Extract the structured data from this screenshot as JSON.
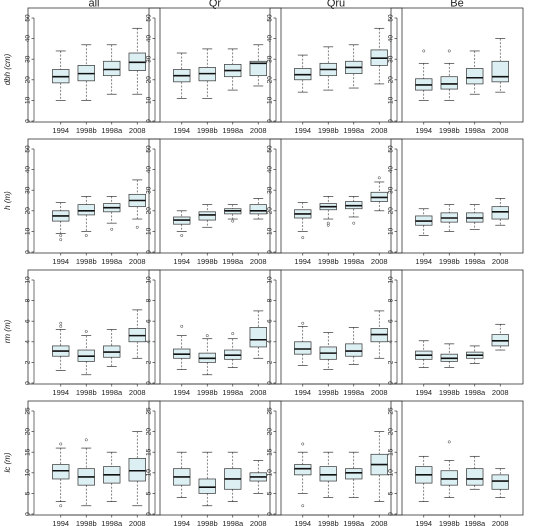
{
  "chart_data": {
    "type": "boxplot",
    "column_titles": [
      "all",
      "Qr",
      "Qru",
      "Be"
    ],
    "categories": [
      "1994",
      "1998b",
      "1998a",
      "2008"
    ],
    "box_color": "#dceff2",
    "rows": [
      {
        "ylabel": "dbh (cm)",
        "ylim": [
          0,
          50
        ],
        "yticks": [
          "0",
          "10",
          "20",
          "30",
          "40",
          "50"
        ],
        "panels": [
          [
            {
              "min": 10,
              "q1": 18.5,
              "median": 21.5,
              "q3": 25,
              "max": 34,
              "outliers": []
            },
            {
              "min": 10,
              "q1": 19.5,
              "median": 23,
              "q3": 27,
              "max": 37,
              "outliers": []
            },
            {
              "min": 13,
              "q1": 22,
              "median": 25,
              "q3": 29,
              "max": 37,
              "outliers": []
            },
            {
              "min": 13,
              "q1": 24.5,
              "median": 28.5,
              "q3": 33,
              "max": 45,
              "outliers": []
            }
          ],
          [
            {
              "min": 11,
              "q1": 19,
              "median": 22,
              "q3": 25,
              "max": 33,
              "outliers": []
            },
            {
              "min": 11,
              "q1": 19.5,
              "median": 23,
              "q3": 26,
              "max": 35,
              "outliers": []
            },
            {
              "min": 15,
              "q1": 21.5,
              "median": 24.5,
              "q3": 27.5,
              "max": 35,
              "outliers": []
            },
            {
              "min": 17,
              "q1": 22,
              "median": 28,
              "q3": 29,
              "max": 37,
              "outliers": []
            }
          ],
          [
            {
              "min": 14,
              "q1": 20,
              "median": 22.5,
              "q3": 25.5,
              "max": 32,
              "outliers": []
            },
            {
              "min": 15,
              "q1": 22,
              "median": 25,
              "q3": 28,
              "max": 36,
              "outliers": []
            },
            {
              "min": 16,
              "q1": 23,
              "median": 26,
              "q3": 29,
              "max": 37,
              "outliers": []
            },
            {
              "min": 18,
              "q1": 27,
              "median": 30.5,
              "q3": 34.5,
              "max": 45,
              "outliers": []
            }
          ],
          [
            {
              "min": 10,
              "q1": 15,
              "median": 17.5,
              "q3": 20.5,
              "max": 28,
              "outliers": [
                34
              ]
            },
            {
              "min": 10,
              "q1": 15.5,
              "median": 18,
              "q3": 21.5,
              "max": 28,
              "outliers": [
                34
              ]
            },
            {
              "min": 13,
              "q1": 18,
              "median": 21,
              "q3": 25.5,
              "max": 34,
              "outliers": []
            },
            {
              "min": 14,
              "q1": 19,
              "median": 21.5,
              "q3": 29,
              "max": 40,
              "outliers": []
            }
          ]
        ]
      },
      {
        "ylabel": "h (m)",
        "ylim": [
          0,
          50
        ],
        "yticks": [
          "0",
          "10",
          "20",
          "30",
          "40",
          "50"
        ],
        "panels": [
          [
            {
              "min": 9,
              "q1": 15,
              "median": 17.5,
              "q3": 20,
              "max": 24,
              "outliers": [
                6,
                8
              ]
            },
            {
              "min": 10,
              "q1": 18,
              "median": 20,
              "q3": 23,
              "max": 27,
              "outliers": [
                8
              ]
            },
            {
              "min": 14,
              "q1": 19.5,
              "median": 21.5,
              "q3": 23.5,
              "max": 27,
              "outliers": [
                11
              ]
            },
            {
              "min": 16,
              "q1": 22,
              "median": 25,
              "q3": 28,
              "max": 35,
              "outliers": [
                12
              ]
            }
          ],
          [
            {
              "min": 10,
              "q1": 13.5,
              "median": 15.5,
              "q3": 17,
              "max": 20,
              "outliers": [
                8
              ]
            },
            {
              "min": 12,
              "q1": 15.5,
              "median": 18,
              "q3": 19.5,
              "max": 23,
              "outliers": []
            },
            {
              "min": 16,
              "q1": 18.5,
              "median": 20,
              "q3": 21,
              "max": 23,
              "outliers": [
                15
              ]
            },
            {
              "min": 16,
              "q1": 18.5,
              "median": 20,
              "q3": 23,
              "max": 26,
              "outliers": []
            }
          ],
          [
            {
              "min": 10,
              "q1": 16.5,
              "median": 18.5,
              "q3": 20.5,
              "max": 24,
              "outliers": [
                7
              ]
            },
            {
              "min": 16,
              "q1": 20.5,
              "median": 22,
              "q3": 23.5,
              "max": 27,
              "outliers": [
                13,
                14
              ]
            },
            {
              "min": 17,
              "q1": 21,
              "median": 22.5,
              "q3": 24.5,
              "max": 27,
              "outliers": [
                14
              ]
            },
            {
              "min": 20,
              "q1": 24.5,
              "median": 26.5,
              "q3": 29,
              "max": 34,
              "outliers": [
                36
              ]
            }
          ],
          [
            {
              "min": 8,
              "q1": 13,
              "median": 15,
              "q3": 17.5,
              "max": 21,
              "outliers": []
            },
            {
              "min": 10,
              "q1": 14.5,
              "median": 16.5,
              "q3": 19,
              "max": 23,
              "outliers": []
            },
            {
              "min": 11,
              "q1": 14.5,
              "median": 16.5,
              "q3": 19,
              "max": 23,
              "outliers": []
            },
            {
              "min": 13,
              "q1": 16,
              "median": 19.5,
              "q3": 22,
              "max": 26,
              "outliers": []
            }
          ]
        ]
      },
      {
        "ylabel": "rm (m)",
        "ylim": [
          0,
          10
        ],
        "yticks": [
          "0",
          "2",
          "4",
          "6",
          "8",
          "10"
        ],
        "panels": [
          [
            {
              "min": 1.2,
              "q1": 2.6,
              "median": 3.1,
              "q3": 3.6,
              "max": 5.2,
              "outliers": [
                5.5,
                5.8
              ]
            },
            {
              "min": 0.8,
              "q1": 2.1,
              "median": 2.6,
              "q3": 3.2,
              "max": 4.6,
              "outliers": [
                5
              ]
            },
            {
              "min": 1.6,
              "q1": 2.5,
              "median": 3,
              "q3": 3.6,
              "max": 5.2,
              "outliers": []
            },
            {
              "min": 2.4,
              "q1": 4,
              "median": 4.6,
              "q3": 5.3,
              "max": 7.1,
              "outliers": []
            }
          ],
          [
            {
              "min": 1.3,
              "q1": 2.4,
              "median": 2.8,
              "q3": 3.3,
              "max": 4.6,
              "outliers": [
                5.5
              ]
            },
            {
              "min": 0.8,
              "q1": 2,
              "median": 2.4,
              "q3": 2.9,
              "max": 4.3,
              "outliers": [
                4.6
              ]
            },
            {
              "min": 1.5,
              "q1": 2.3,
              "median": 2.7,
              "q3": 3.2,
              "max": 4.3,
              "outliers": [
                4.8
              ]
            },
            {
              "min": 2.4,
              "q1": 3.5,
              "median": 4.2,
              "q3": 5.4,
              "max": 7,
              "outliers": []
            }
          ],
          [
            {
              "min": 1.7,
              "q1": 2.8,
              "median": 3.3,
              "q3": 4,
              "max": 5.5,
              "outliers": [
                5.8
              ]
            },
            {
              "min": 1.3,
              "q1": 2.3,
              "median": 2.9,
              "q3": 3.5,
              "max": 4.9,
              "outliers": []
            },
            {
              "min": 1.8,
              "q1": 2.6,
              "median": 3.1,
              "q3": 3.8,
              "max": 5.4,
              "outliers": []
            },
            {
              "min": 2.4,
              "q1": 4,
              "median": 4.7,
              "q3": 5.3,
              "max": 7,
              "outliers": []
            }
          ],
          [
            {
              "min": 1.5,
              "q1": 2.3,
              "median": 2.7,
              "q3": 3.1,
              "max": 4.1,
              "outliers": []
            },
            {
              "min": 1.5,
              "q1": 2.1,
              "median": 2.4,
              "q3": 2.8,
              "max": 3.8,
              "outliers": []
            },
            {
              "min": 1.9,
              "q1": 2.4,
              "median": 2.7,
              "q3": 3,
              "max": 3.6,
              "outliers": []
            },
            {
              "min": 3.2,
              "q1": 3.6,
              "median": 4.1,
              "q3": 4.7,
              "max": 5.7,
              "outliers": []
            }
          ]
        ]
      },
      {
        "ylabel": "lc (m)",
        "ylim": [
          0,
          25
        ],
        "yticks": [
          "0",
          "5",
          "10",
          "15",
          "20",
          "25"
        ],
        "panels": [
          [
            {
              "min": 3,
              "q1": 8.5,
              "median": 10.5,
              "q3": 12,
              "max": 16,
              "outliers": [
                17,
                2
              ]
            },
            {
              "min": 2,
              "q1": 7,
              "median": 9,
              "q3": 11,
              "max": 16,
              "outliers": [
                18
              ]
            },
            {
              "min": 3,
              "q1": 7.5,
              "median": 9.5,
              "q3": 11.5,
              "max": 15,
              "outliers": []
            },
            {
              "min": 2,
              "q1": 8,
              "median": 10.5,
              "q3": 13.5,
              "max": 20,
              "outliers": []
            }
          ],
          [
            {
              "min": 4,
              "q1": 7,
              "median": 9,
              "q3": 11,
              "max": 15,
              "outliers": []
            },
            {
              "min": 2,
              "q1": 5,
              "median": 6.5,
              "q3": 8.5,
              "max": 15,
              "outliers": []
            },
            {
              "min": 3,
              "q1": 6,
              "median": 8.5,
              "q3": 11,
              "max": 15,
              "outliers": []
            },
            {
              "min": 5,
              "q1": 8,
              "median": 9,
              "q3": 10,
              "max": 13,
              "outliers": []
            }
          ],
          [
            {
              "min": 5,
              "q1": 9.5,
              "median": 11,
              "q3": 12,
              "max": 15,
              "outliers": [
                2,
                17
              ]
            },
            {
              "min": 4,
              "q1": 8,
              "median": 9.5,
              "q3": 11.5,
              "max": 15,
              "outliers": []
            },
            {
              "min": 4,
              "q1": 8.5,
              "median": 10,
              "q3": 11,
              "max": 15,
              "outliers": []
            },
            {
              "min": 3,
              "q1": 9.5,
              "median": 12,
              "q3": 14.5,
              "max": 20,
              "outliers": []
            }
          ],
          [
            {
              "min": 3,
              "q1": 7.5,
              "median": 9.5,
              "q3": 11.5,
              "max": 14,
              "outliers": []
            },
            {
              "min": 4,
              "q1": 7,
              "median": 8.5,
              "q3": 10.5,
              "max": 13,
              "outliers": [
                17.5
              ]
            },
            {
              "min": 6,
              "q1": 7,
              "median": 8.5,
              "q3": 11,
              "max": 14,
              "outliers": []
            },
            {
              "min": 4,
              "q1": 6,
              "median": 8,
              "q3": 9.5,
              "max": 11,
              "outliers": []
            }
          ]
        ]
      }
    ]
  }
}
